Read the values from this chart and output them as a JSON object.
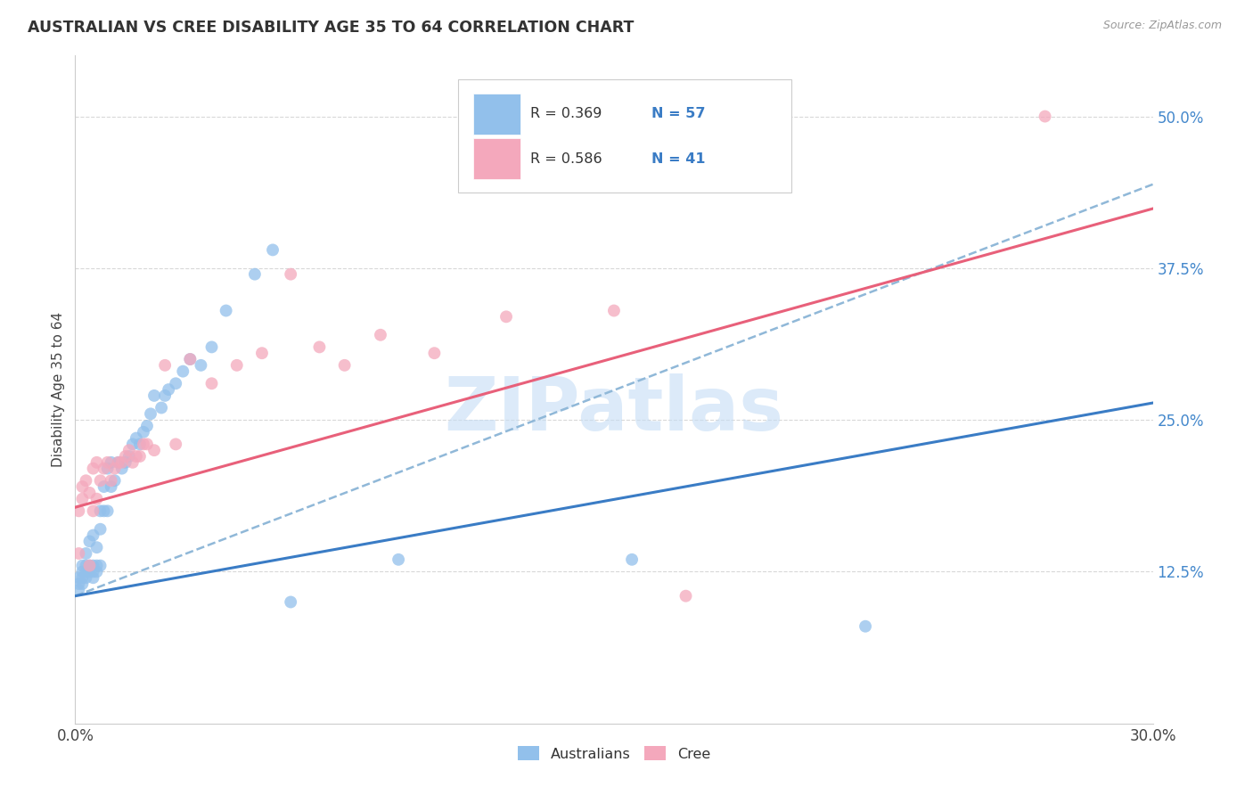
{
  "title": "AUSTRALIAN VS CREE DISABILITY AGE 35 TO 64 CORRELATION CHART",
  "source": "Source: ZipAtlas.com",
  "ylabel": "Disability Age 35 to 64",
  "xlim": [
    0.0,
    0.3
  ],
  "ylim": [
    0.0,
    0.55
  ],
  "yticks": [
    0.125,
    0.25,
    0.375,
    0.5
  ],
  "ytick_labels": [
    "12.5%",
    "25.0%",
    "37.5%",
    "50.0%"
  ],
  "xticks": [
    0.0,
    0.05,
    0.1,
    0.15,
    0.2,
    0.25,
    0.3
  ],
  "xtick_labels": [
    "0.0%",
    "",
    "",
    "",
    "",
    "",
    "30.0%"
  ],
  "background_color": "#ffffff",
  "grid_color": "#d8d8d8",
  "watermark_text": "ZIPatlas",
  "australian_color": "#92c0eb",
  "cree_color": "#f4a8bc",
  "trend_blue_color": "#3a7cc5",
  "trend_pink_color": "#e8607a",
  "trend_dashed_color": "#90b8d8",
  "aus_trend_intercept": 0.105,
  "aus_trend_slope": 0.53,
  "cree_trend_intercept": 0.178,
  "cree_trend_slope": 0.82,
  "dashed_intercept": 0.105,
  "dashed_slope": 1.13,
  "australians_x": [
    0.001,
    0.001,
    0.001,
    0.002,
    0.002,
    0.002,
    0.002,
    0.003,
    0.003,
    0.003,
    0.003,
    0.004,
    0.004,
    0.004,
    0.005,
    0.005,
    0.005,
    0.005,
    0.006,
    0.006,
    0.006,
    0.007,
    0.007,
    0.007,
    0.008,
    0.008,
    0.009,
    0.009,
    0.01,
    0.01,
    0.011,
    0.012,
    0.013,
    0.014,
    0.015,
    0.016,
    0.017,
    0.018,
    0.019,
    0.02,
    0.021,
    0.022,
    0.024,
    0.025,
    0.026,
    0.028,
    0.03,
    0.032,
    0.035,
    0.038,
    0.042,
    0.05,
    0.055,
    0.06,
    0.09,
    0.155,
    0.22
  ],
  "australians_y": [
    0.11,
    0.115,
    0.12,
    0.115,
    0.12,
    0.125,
    0.13,
    0.12,
    0.125,
    0.13,
    0.14,
    0.125,
    0.13,
    0.15,
    0.12,
    0.125,
    0.13,
    0.155,
    0.125,
    0.13,
    0.145,
    0.13,
    0.16,
    0.175,
    0.175,
    0.195,
    0.175,
    0.21,
    0.195,
    0.215,
    0.2,
    0.215,
    0.21,
    0.215,
    0.22,
    0.23,
    0.235,
    0.23,
    0.24,
    0.245,
    0.255,
    0.27,
    0.26,
    0.27,
    0.275,
    0.28,
    0.29,
    0.3,
    0.295,
    0.31,
    0.34,
    0.37,
    0.39,
    0.1,
    0.135,
    0.135,
    0.08
  ],
  "cree_x": [
    0.001,
    0.001,
    0.002,
    0.002,
    0.003,
    0.004,
    0.004,
    0.005,
    0.005,
    0.006,
    0.006,
    0.007,
    0.008,
    0.009,
    0.01,
    0.011,
    0.012,
    0.013,
    0.014,
    0.015,
    0.016,
    0.017,
    0.018,
    0.019,
    0.02,
    0.022,
    0.025,
    0.028,
    0.032,
    0.038,
    0.045,
    0.052,
    0.06,
    0.068,
    0.075,
    0.085,
    0.1,
    0.12,
    0.15,
    0.17,
    0.27
  ],
  "cree_y": [
    0.14,
    0.175,
    0.185,
    0.195,
    0.2,
    0.13,
    0.19,
    0.175,
    0.21,
    0.185,
    0.215,
    0.2,
    0.21,
    0.215,
    0.2,
    0.21,
    0.215,
    0.215,
    0.22,
    0.225,
    0.215,
    0.22,
    0.22,
    0.23,
    0.23,
    0.225,
    0.295,
    0.23,
    0.3,
    0.28,
    0.295,
    0.305,
    0.37,
    0.31,
    0.295,
    0.32,
    0.305,
    0.335,
    0.34,
    0.105,
    0.5
  ]
}
